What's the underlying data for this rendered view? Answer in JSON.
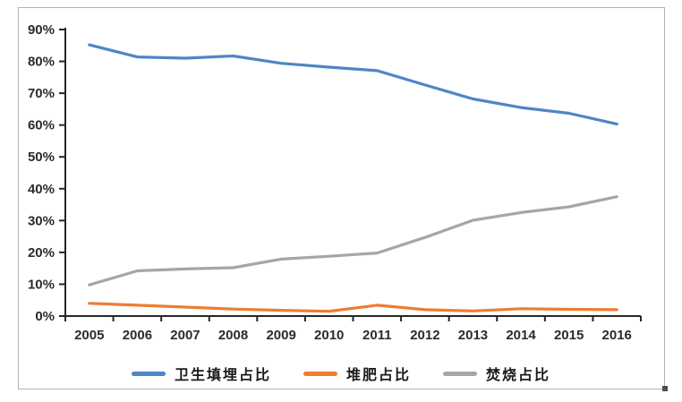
{
  "chart_data": {
    "type": "line",
    "categories": [
      "2005",
      "2006",
      "2007",
      "2008",
      "2009",
      "2010",
      "2011",
      "2012",
      "2013",
      "2014",
      "2015",
      "2016"
    ],
    "series": [
      {
        "name": "卫生填埋占比",
        "color": "#4E86C6",
        "values": [
          85.2,
          81.4,
          81.0,
          81.7,
          79.4,
          78.2,
          77.1,
          72.6,
          68.2,
          65.5,
          63.7,
          60.3
        ]
      },
      {
        "name": "堆肥占比",
        "color": "#ED7D31",
        "values": [
          4.0,
          3.4,
          2.8,
          2.2,
          1.8,
          1.5,
          3.4,
          2.0,
          1.6,
          2.3,
          2.1,
          2.0
        ]
      },
      {
        "name": "焚烧占比",
        "color": "#A6A6A6",
        "values": [
          9.8,
          14.2,
          14.8,
          15.2,
          17.9,
          18.8,
          19.8,
          24.7,
          30.1,
          32.5,
          34.3,
          37.5
        ]
      }
    ],
    "title": "",
    "xlabel": "",
    "ylabel": "",
    "ylim": [
      0,
      90
    ],
    "ytick_step": 10,
    "ytick_labels": [
      "0%",
      "10%",
      "20%",
      "30%",
      "40%",
      "50%",
      "60%",
      "70%",
      "80%",
      "90%"
    ],
    "grid": false,
    "legend_position": "bottom",
    "axis_color": "#262626",
    "label_color": "#2b2b2b"
  }
}
